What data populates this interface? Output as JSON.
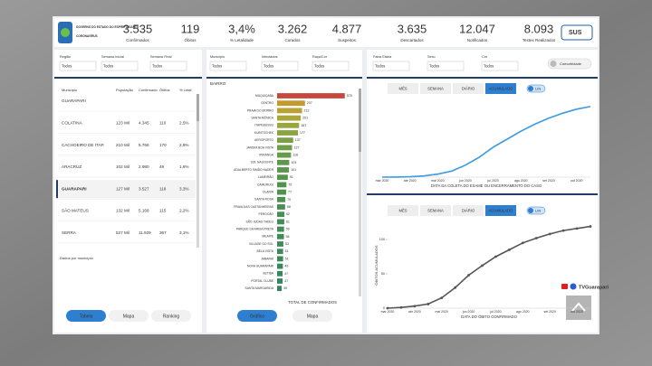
{
  "header": {
    "logo_text": "GOVERNO DO ESTADO DO ESPÍRITO SANTO",
    "logo_subtext": "CORONAVÍRUS",
    "kpis": [
      {
        "value": "3.535",
        "label": "Confirmados"
      },
      {
        "value": "119",
        "label": "Óbitos"
      },
      {
        "value": "3,4%",
        "label": "% Letalidade"
      },
      {
        "value": "3.262",
        "label": "Curados"
      },
      {
        "value": "4.877",
        "label": "Suspeitos"
      },
      {
        "value": "3.635",
        "label": "Descartados"
      },
      {
        "value": "12.047",
        "label": "Notificados"
      },
      {
        "value": "8.093",
        "label": "Testes Realizados"
      }
    ],
    "sus": "SUS"
  },
  "filters": {
    "left": [
      {
        "label": "Região",
        "value": "Todos"
      },
      {
        "label": "Semana Inicial",
        "value": "Todos"
      },
      {
        "label": "Semana Final",
        "value": "Todos"
      }
    ],
    "middle": [
      {
        "label": "Município",
        "value": "Todos"
      },
      {
        "label": "Infectados",
        "value": "Todos"
      },
      {
        "label": "Raça/Cor",
        "value": "Todos"
      }
    ],
    "right": [
      {
        "label": "Faixa Etária",
        "value": "Todos"
      },
      {
        "label": "Sexo",
        "value": "Todos"
      },
      {
        "label": "Cor",
        "value": "Todos"
      }
    ],
    "comorbidity": "Comorbidade"
  },
  "table": {
    "columns": [
      "Município",
      "População",
      "Confirmado",
      "Óbitos",
      "% Letal"
    ],
    "rows": [
      [
        "GUARAPARI",
        "",
        "",
        "",
        ""
      ],
      [
        "COLATINA",
        "123 Mil",
        "4.345",
        "110",
        "2,5%"
      ],
      [
        "CACHOEIRO DE ITAP.",
        "210 Mil",
        "5.766",
        "170",
        "2,9%"
      ],
      [
        "ARACRUZ",
        "102 Mil",
        "2.980",
        "49",
        "1,6%"
      ],
      [
        "GUARAPARI",
        "127 Mil",
        "3.527",
        "118",
        "3,3%"
      ],
      [
        "SÃO MATEUS",
        "132 Mil",
        "5.168",
        "115",
        "2,2%"
      ],
      [
        "SERRA",
        "527 Mil",
        "11.929",
        "367",
        "3,1%"
      ]
    ],
    "selected": 4,
    "note": "Dados por município",
    "buttons": [
      "Tabela",
      "Mapa",
      "Ranking"
    ]
  },
  "bar_buttons": [
    "Gráfico",
    "Mapa"
  ],
  "tabs": [
    "MÊS",
    "SEMANA",
    "DIÁRIO",
    "ACUMULADO"
  ],
  "toggle": "LIN",
  "watermark": "TVGuarapari",
  "chart_data": [
    {
      "type": "bar",
      "title": "BAIRRO",
      "xlabel": "TOTAL DE CONFIRMADOS",
      "categories": [
        "MUQUIÇABA",
        "CENTRO",
        "PRAIA DO MORRO",
        "SANTA MÔNICA",
        "ITAPEBUSSU",
        "KUBITSCHEK",
        "AEROPORTO",
        "JARDIM BOA VISTA",
        "IPIRANGA",
        "SOL NASCENTE",
        "ADALBERTO SIMÃO NADER",
        "LAMEIRÃO",
        "CAMURUGI",
        "OLARIA",
        "SANTA ROSA",
        "PRAIA DAS CASTANHEIRAS",
        "PEROCÃO",
        "SÃO JUDAS TADEU",
        "PARQUE DA AREIA PRETA",
        "MEAÍPE",
        "VILLAGE DO SOL",
        "BELA VISTA",
        "JABARAÍ",
        "NOVA GUARAPARI",
        "SETIBA",
        "PORTAL CLUBE",
        "SANTA MARGARIDA"
      ],
      "values": [
        575,
        237,
        212,
        201,
        187,
        177,
        137,
        127,
        118,
        103,
        101,
        91,
        79,
        77,
        70,
        68,
        62,
        61,
        59,
        58,
        53,
        51,
        51,
        49,
        47,
        47,
        39
      ],
      "colors": [
        "#c9463d",
        "#c49a2c",
        "#b9a233",
        "#a9a63a",
        "#9aa63f",
        "#8aa443",
        "#79a046",
        "#6f9d48",
        "#679b4a",
        "#60984b",
        "#5b964c",
        "#56944d",
        "#52924f",
        "#4f9150",
        "#4c9052",
        "#498f53",
        "#478e55",
        "#458d56",
        "#438c57",
        "#418b58",
        "#3f8a59",
        "#3d895a",
        "#3b885b",
        "#39875c",
        "#37865d",
        "#35855e",
        "#33845f"
      ],
      "xlim": [
        0,
        600
      ]
    },
    {
      "type": "line",
      "xlabel": "DATA DA COLETA DO EXAME OU ENCERRAMENTO DO CASO",
      "x": [
        "mar 2020",
        null,
        "abr 2020",
        null,
        "mai 2020",
        null,
        "jun 2020",
        null,
        "jul 2020",
        null,
        "ago 2020",
        null,
        "set 2020",
        null,
        "out 2020",
        null
      ],
      "values": [
        0,
        5,
        20,
        60,
        150,
        300,
        600,
        1000,
        1500,
        1900,
        2300,
        2650,
        2950,
        3200,
        3400,
        3535
      ],
      "color": "#3a9be0",
      "ylim": [
        0,
        3800
      ]
    },
    {
      "type": "line",
      "xlabel": "DATA DO ÓBITO CONFIRMADO",
      "ylabel": "ÓBITOS ACUMULADOS",
      "x": [
        "mar 2020",
        null,
        "abr 2020",
        null,
        "mai 2020",
        null,
        "jun 2020",
        null,
        "jul 2020",
        null,
        "ago 2020",
        null,
        "set 2020",
        null,
        "out 2020",
        null
      ],
      "values": [
        0,
        1,
        3,
        6,
        15,
        30,
        48,
        62,
        75,
        85,
        95,
        102,
        108,
        113,
        116,
        119
      ],
      "color": "#555555",
      "markers": true,
      "ylim": [
        0,
        125
      ],
      "yticks": [
        0,
        50,
        100
      ]
    }
  ]
}
